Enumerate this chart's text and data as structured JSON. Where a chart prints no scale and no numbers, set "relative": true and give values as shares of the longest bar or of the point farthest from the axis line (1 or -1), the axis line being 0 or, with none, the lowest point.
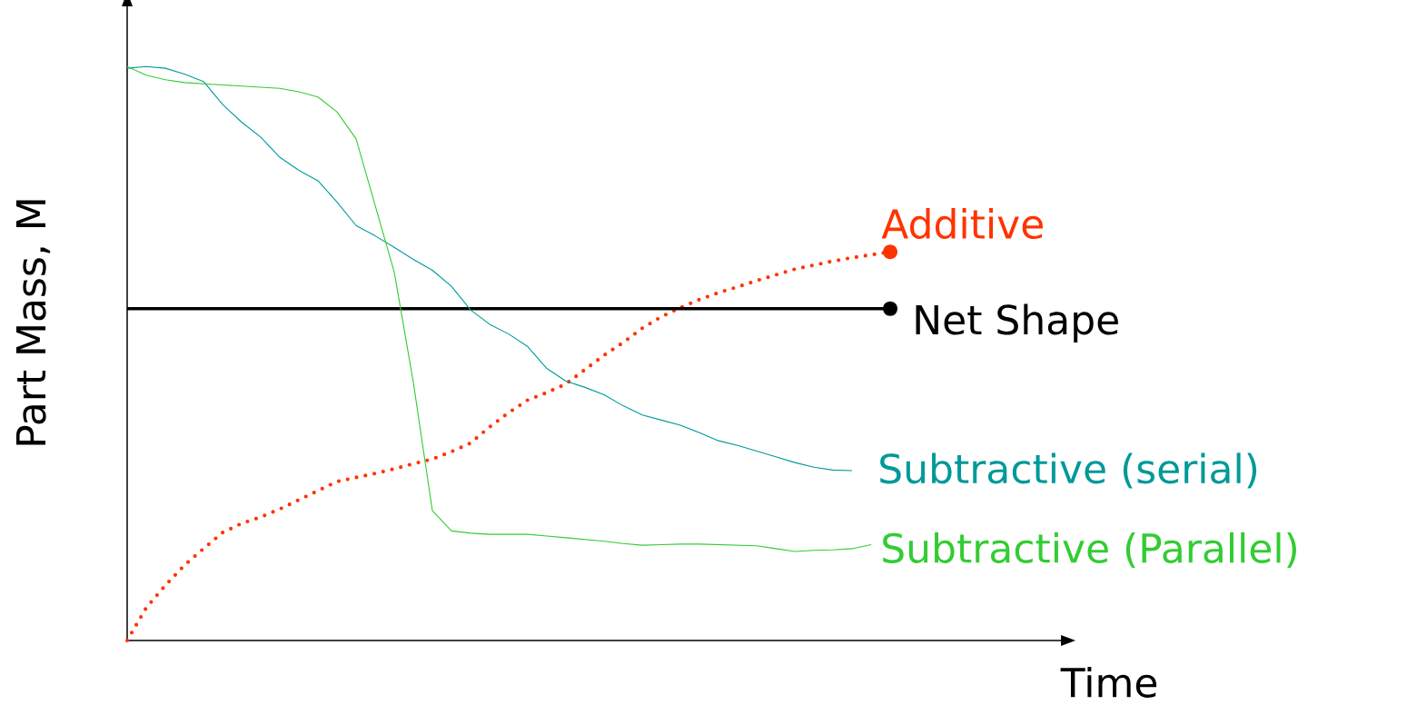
{
  "chart_data": {
    "type": "line",
    "relative": true,
    "xlabel": "Time",
    "ylabel": "Part Mass, M",
    "categories": [
      null,
      null,
      null,
      null,
      null,
      null,
      null,
      null,
      null,
      null,
      null,
      null,
      null,
      null,
      null,
      null,
      null,
      null,
      null,
      null,
      null,
      null,
      null,
      null,
      null,
      null,
      null,
      null,
      null,
      null,
      null,
      null,
      null,
      null,
      null,
      null,
      null,
      null,
      null,
      null,
      null
    ],
    "series": [
      {
        "name": "Additive",
        "color": "#ff3300",
        "line_style": "dotted",
        "values": [
          0,
          0.057,
          0.096,
          0.131,
          0.16,
          0.188,
          0.204,
          0.215,
          0.229,
          0.245,
          0.261,
          0.277,
          0.284,
          0.291,
          0.299,
          0.308,
          0.316,
          0.329,
          0.344,
          0.372,
          0.397,
          0.419,
          0.432,
          0.447,
          0.472,
          0.497,
          0.519,
          0.544,
          0.564,
          0.58,
          0.594,
          0.606,
          0.616,
          0.627,
          0.637,
          0.647,
          0.654,
          0.661,
          0.667,
          0.672,
          0.677
        ]
      },
      {
        "name": "Net Shape",
        "color": "#000000",
        "line_style": "solid",
        "values": [
          0.578,
          0.578,
          0.578,
          0.578,
          0.578,
          0.578,
          0.578,
          0.578,
          0.578,
          0.578,
          0.578,
          0.578,
          0.578,
          0.578,
          0.578,
          0.578,
          0.578,
          0.578,
          0.578,
          0.578,
          0.578,
          0.578,
          0.578,
          0.578,
          0.578,
          0.578,
          0.578,
          0.578,
          0.578,
          0.578,
          0.578,
          0.578,
          0.578,
          0.578,
          0.578,
          0.578,
          0.578,
          0.578,
          0.578,
          0.578,
          0.578
        ]
      },
      {
        "name": "Subtractive (serial)",
        "color": "#009999",
        "line_style": "solid",
        "marker": "none",
        "values": [
          0.997,
          1.0,
          0.997,
          0.987,
          0.974,
          0.934,
          0.903,
          0.877,
          0.842,
          0.819,
          0.801,
          0.764,
          0.723,
          0.705,
          0.685,
          0.664,
          0.645,
          0.617,
          0.576,
          0.551,
          0.534,
          0.512,
          0.474,
          0.452,
          0.441,
          0.428,
          0.409,
          0.393,
          0.384,
          0.375,
          0.362,
          0.348,
          0.34,
          0.33,
          0.32,
          0.31,
          0.302,
          0.297,
          0.296,
          null,
          null
        ]
      },
      {
        "name": "Subtractive (Parallel)",
        "color": "#33cc33",
        "line_style": "solid",
        "marker": "none",
        "values": [
          1.0,
          0.985,
          0.977,
          0.972,
          0.97,
          0.968,
          0.966,
          0.964,
          0.962,
          0.956,
          0.947,
          0.921,
          0.874,
          0.758,
          0.642,
          0.45,
          0.226,
          0.191,
          0.187,
          0.185,
          0.185,
          0.185,
          0.182,
          0.179,
          0.176,
          0.173,
          0.169,
          0.166,
          0.167,
          0.168,
          0.168,
          0.167,
          0.166,
          0.165,
          0.16,
          0.155,
          0.157,
          0.158,
          0.16,
          0.167,
          null
        ]
      }
    ]
  }
}
